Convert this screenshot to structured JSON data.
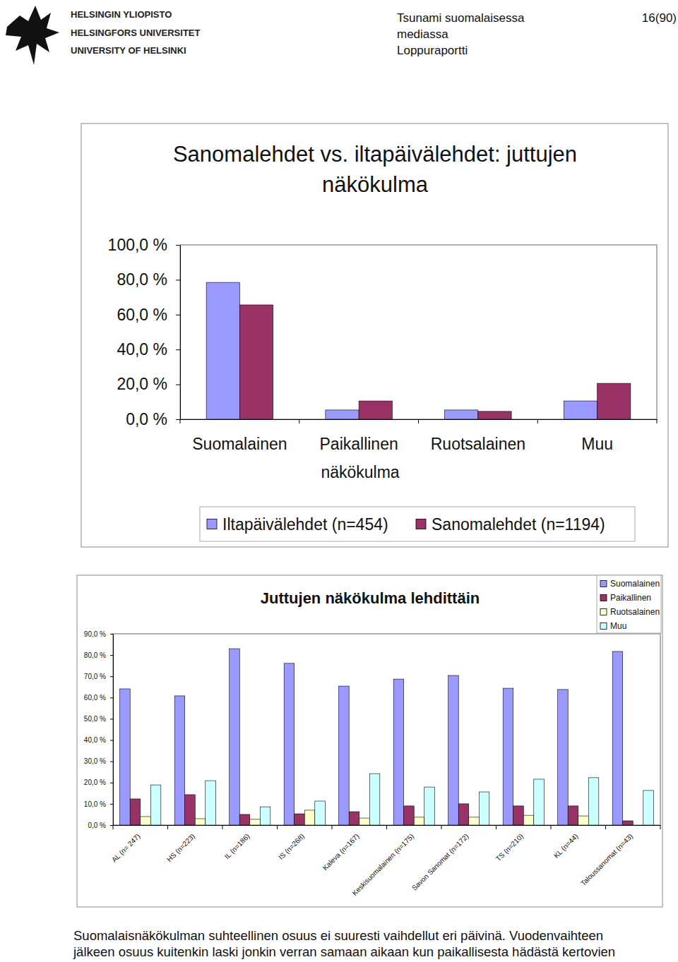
{
  "page": {
    "header": {
      "university": [
        "HELSINGIN YLIOPISTO",
        "HELSINGFORS UNIVERSITET",
        "UNIVERSITY OF HELSINKI"
      ],
      "report": [
        "Tsunami suomalaisessa",
        "mediassa",
        "Loppuraportti"
      ],
      "page_number": "16(90)"
    },
    "footer": [
      "Suomalaisnäkökulman suhteellinen osuus ei suuresti vaihdellut eri päivinä. Vuodenvaihteen",
      "jälkeen osuus kuitenkin laski jonkin verran samaan aikaan kun paikallisesta hädästä kertovien"
    ]
  },
  "chart_data": [
    {
      "type": "bar",
      "title": [
        "Sanomalehdet vs. iltapäivälehdet: juttujen",
        "näkökulma"
      ],
      "x_label": "näkökulma",
      "categories": [
        "Suomalainen",
        "Paikallinen",
        "Ruotsalainen",
        "Muu"
      ],
      "series": [
        {
          "name": "Iltapäivälehdet (n=454)",
          "color": "#9999ff",
          "values": [
            78.5,
            5.3,
            5.3,
            10.5
          ]
        },
        {
          "name": "Sanomalehdet (n=1194)",
          "color": "#993366",
          "values": [
            65.6,
            10.5,
            4.5,
            20.6
          ]
        }
      ],
      "ylim": [
        0,
        100
      ],
      "yticks": [
        {
          "value": 0,
          "label": "0,0 %"
        },
        {
          "value": 20,
          "label": "20,0 %"
        },
        {
          "value": 40,
          "label": "40,0 %"
        },
        {
          "value": 60,
          "label": "60,0 %"
        },
        {
          "value": 80,
          "label": "80,0 %"
        },
        {
          "value": 100,
          "label": "100,0 %"
        }
      ],
      "grid": false,
      "legend": "bottom"
    },
    {
      "type": "bar",
      "title": [
        "Juttujen näkökulma lehdittäin"
      ],
      "categories": [
        "AL (n= 247)",
        "HS (n=223)",
        "IL (n=186)",
        "IS (n=268)",
        "Kaleva (n=167)",
        "Keskisuomalainen (n=175)",
        "Savon Sanomat (n=172)",
        "TS (n=210)",
        "KL (n=44)",
        "Taloussanomat (n=43)"
      ],
      "series": [
        {
          "name": "Suomalainen",
          "color": "#9999ff",
          "values": [
            64.1,
            60.8,
            83.0,
            76.1,
            65.4,
            68.7,
            70.4,
            64.4,
            63.8,
            81.7
          ]
        },
        {
          "name": "Paikallinen",
          "color": "#993366",
          "values": [
            12.3,
            14.3,
            5.0,
            5.3,
            6.3,
            9.0,
            10.0,
            9.0,
            9.0,
            2.0
          ]
        },
        {
          "name": "Ruotsalainen",
          "color": "#ffffcc",
          "values": [
            4.0,
            3.0,
            2.7,
            7.0,
            3.3,
            3.7,
            3.7,
            4.6,
            4.3,
            0
          ]
        },
        {
          "name": "Muu",
          "color": "#ccffff",
          "values": [
            18.9,
            20.9,
            8.6,
            11.3,
            24.2,
            17.9,
            15.6,
            21.6,
            22.3,
            16.3
          ]
        }
      ],
      "ylim": [
        0,
        90
      ],
      "yticks": [
        {
          "value": 0,
          "label": "0,0 %"
        },
        {
          "value": 10,
          "label": "10,0 %"
        },
        {
          "value": 20,
          "label": "20,0 %"
        },
        {
          "value": 30,
          "label": "30,0 %"
        },
        {
          "value": 40,
          "label": "40,0 %"
        },
        {
          "value": 50,
          "label": "50,0 %"
        },
        {
          "value": 60,
          "label": "60,0 %"
        },
        {
          "value": 70,
          "label": "70,0 %"
        },
        {
          "value": 80,
          "label": "80,0 %"
        },
        {
          "value": 90,
          "label": "90,0 %"
        }
      ],
      "grid": false,
      "legend": "top-right"
    }
  ]
}
